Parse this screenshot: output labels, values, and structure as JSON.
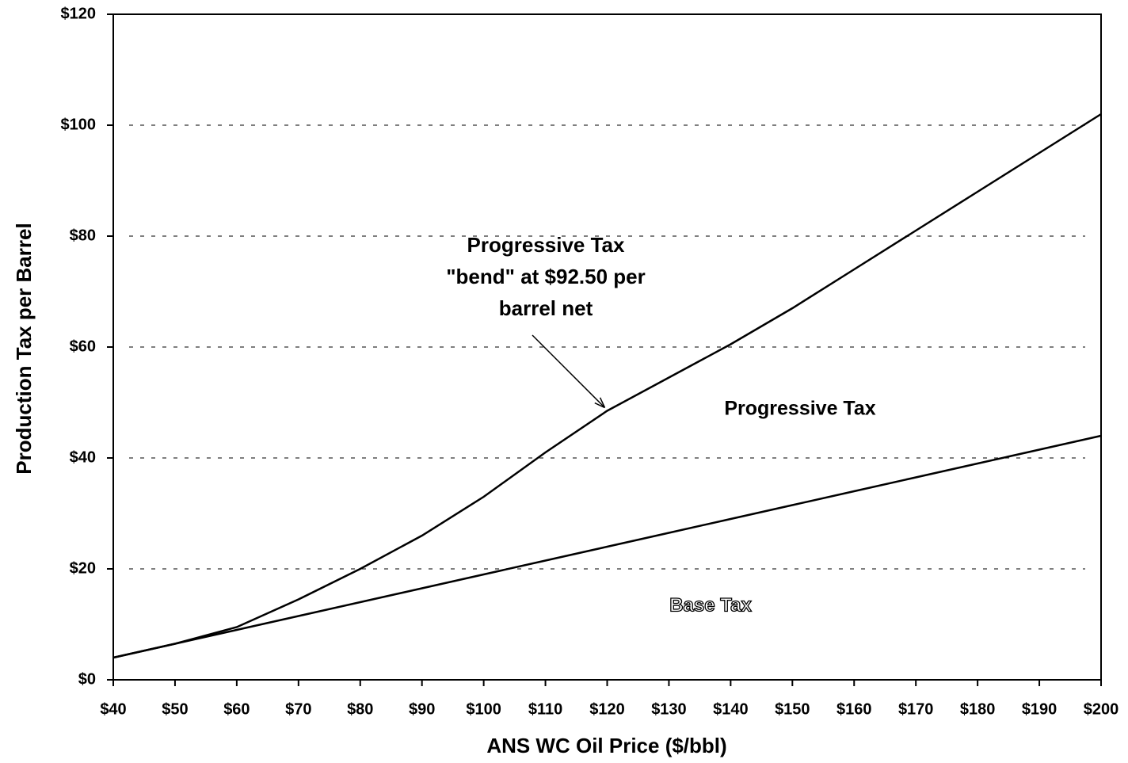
{
  "chart_data": {
    "type": "line",
    "x_label": "ANS WC Oil Price ($/bbl)",
    "y_label": "Production Tax per Barrel",
    "x": [
      40,
      50,
      60,
      70,
      80,
      90,
      100,
      110,
      120,
      130,
      140,
      150,
      160,
      170,
      180,
      190,
      200
    ],
    "series": [
      {
        "name": "Progressive Tax",
        "color": "#000000",
        "values": [
          4,
          6.5,
          9.5,
          14.5,
          20,
          26,
          33,
          41,
          48.5,
          54.5,
          60.5,
          67,
          74,
          81,
          88,
          95,
          102
        ]
      },
      {
        "name": "Base Tax",
        "color": "#000000",
        "values": [
          4,
          6.5,
          9,
          11.5,
          14,
          16.5,
          19,
          21.5,
          24,
          26.5,
          29,
          31.5,
          34,
          36.5,
          39,
          41.5,
          44
        ]
      }
    ],
    "xlim": [
      40,
      200
    ],
    "ylim": [
      0,
      120
    ],
    "xticks": [
      {
        "value": 40,
        "label": "$40"
      },
      {
        "value": 50,
        "label": "$50"
      },
      {
        "value": 60,
        "label": "$60"
      },
      {
        "value": 70,
        "label": "$70"
      },
      {
        "value": 80,
        "label": "$80"
      },
      {
        "value": 90,
        "label": "$90"
      },
      {
        "value": 100,
        "label": "$100"
      },
      {
        "value": 110,
        "label": "$110"
      },
      {
        "value": 120,
        "label": "$120"
      },
      {
        "value": 130,
        "label": "$130"
      },
      {
        "value": 140,
        "label": "$140"
      },
      {
        "value": 150,
        "label": "$150"
      },
      {
        "value": 160,
        "label": "$160"
      },
      {
        "value": 170,
        "label": "$170"
      },
      {
        "value": 180,
        "label": "$180"
      },
      {
        "value": 190,
        "label": "$190"
      },
      {
        "value": 200,
        "label": "$200"
      }
    ],
    "yticks": [
      {
        "value": 0,
        "label": "$0"
      },
      {
        "value": 20,
        "label": "$20"
      },
      {
        "value": 40,
        "label": "$40"
      },
      {
        "value": 60,
        "label": "$60"
      },
      {
        "value": 80,
        "label": "$80"
      },
      {
        "value": 100,
        "label": "$100"
      },
      {
        "value": 120,
        "label": "$120"
      }
    ],
    "grid": true,
    "annotation": {
      "lines": [
        "Progressive Tax",
        "\"bend\" at $92.50 per",
        "barrel net"
      ]
    }
  }
}
